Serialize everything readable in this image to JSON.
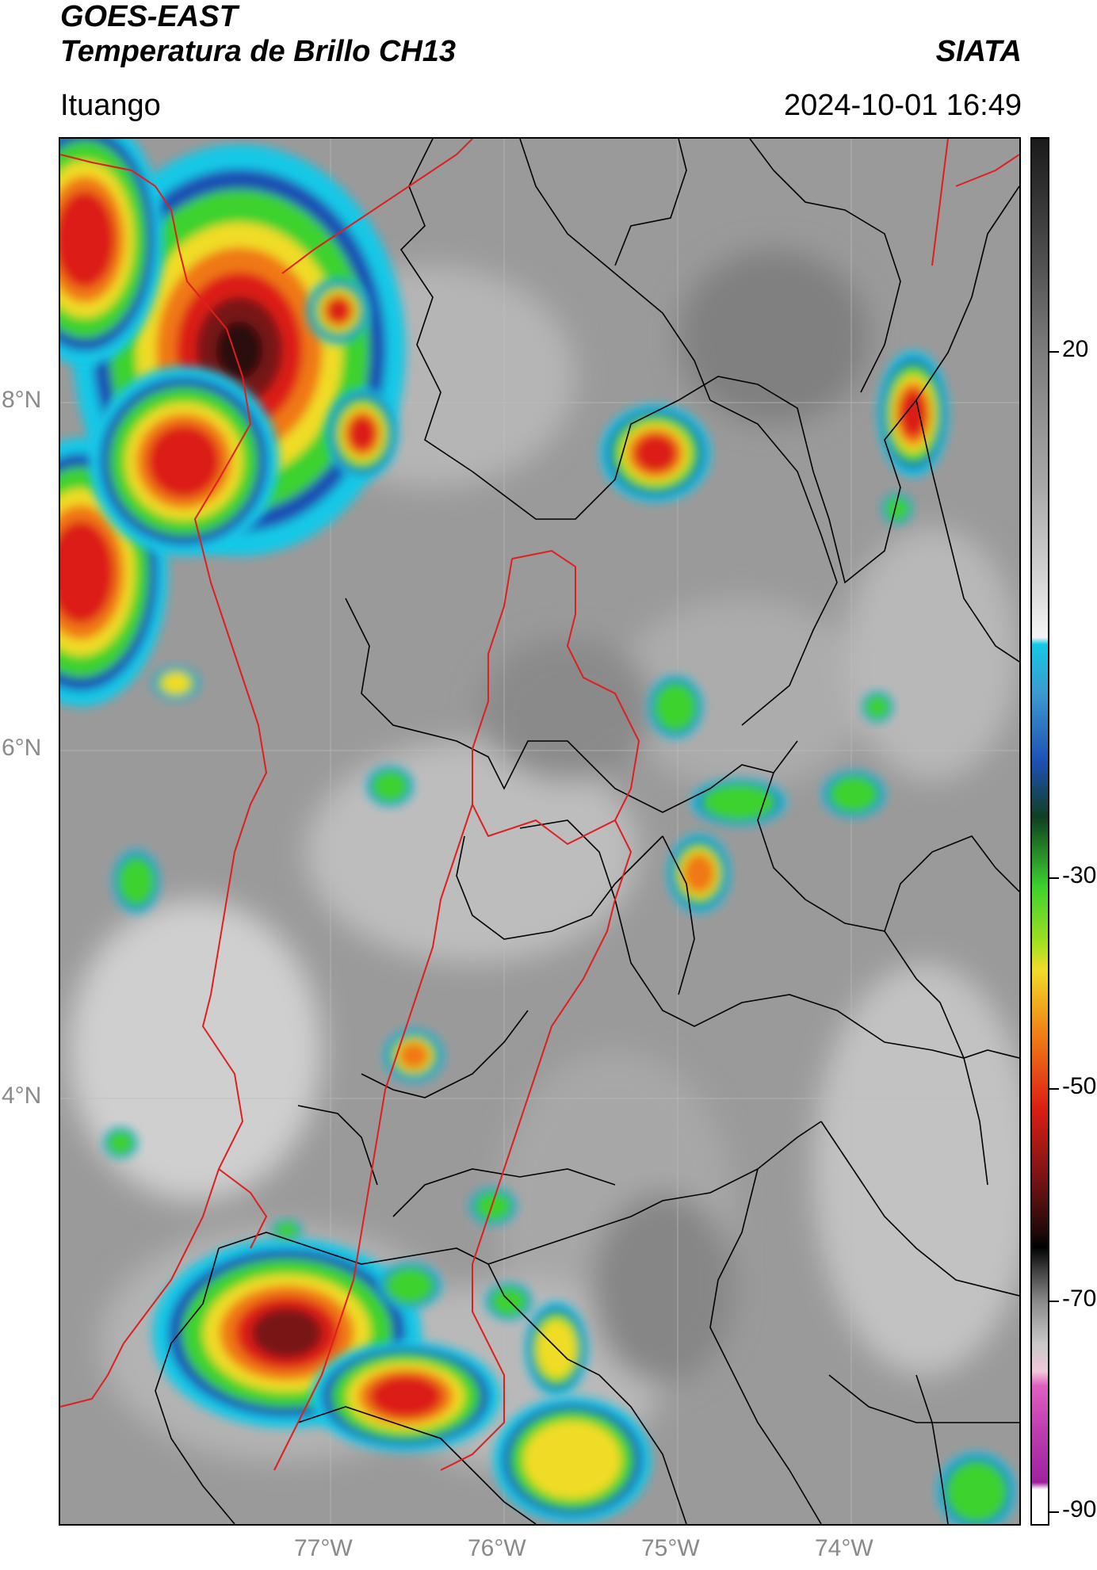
{
  "header": {
    "satellite": "GOES-EAST",
    "product": "Temperatura de Brillo CH13",
    "organization": "SIATA",
    "location": "Ituango",
    "datetime": "2024-10-01 16:49"
  },
  "map": {
    "latitude_labels": [
      "8°N",
      "6°N",
      "4°N"
    ],
    "longitude_labels": [
      "77°W",
      "76°W",
      "75°W",
      "74°W"
    ],
    "colors": {
      "background_gray": "#9a9a9a",
      "warm_light": "#d4d4d4",
      "cold_cyan": "#14c8e6",
      "cold_blue": "#1e50b4",
      "cold_green": "#3cd22d",
      "cold_yellow": "#f0dc28",
      "cold_orange": "#f07814",
      "cold_red": "#dc1e14",
      "coldest_darkred": "#781414",
      "boundary_department": "#e01e1e",
      "boundary_municipal": "#000000"
    }
  },
  "colorbar": {
    "label_values": [
      "20",
      "-30",
      "-50",
      "-70",
      "-90"
    ],
    "unit": ""
  }
}
